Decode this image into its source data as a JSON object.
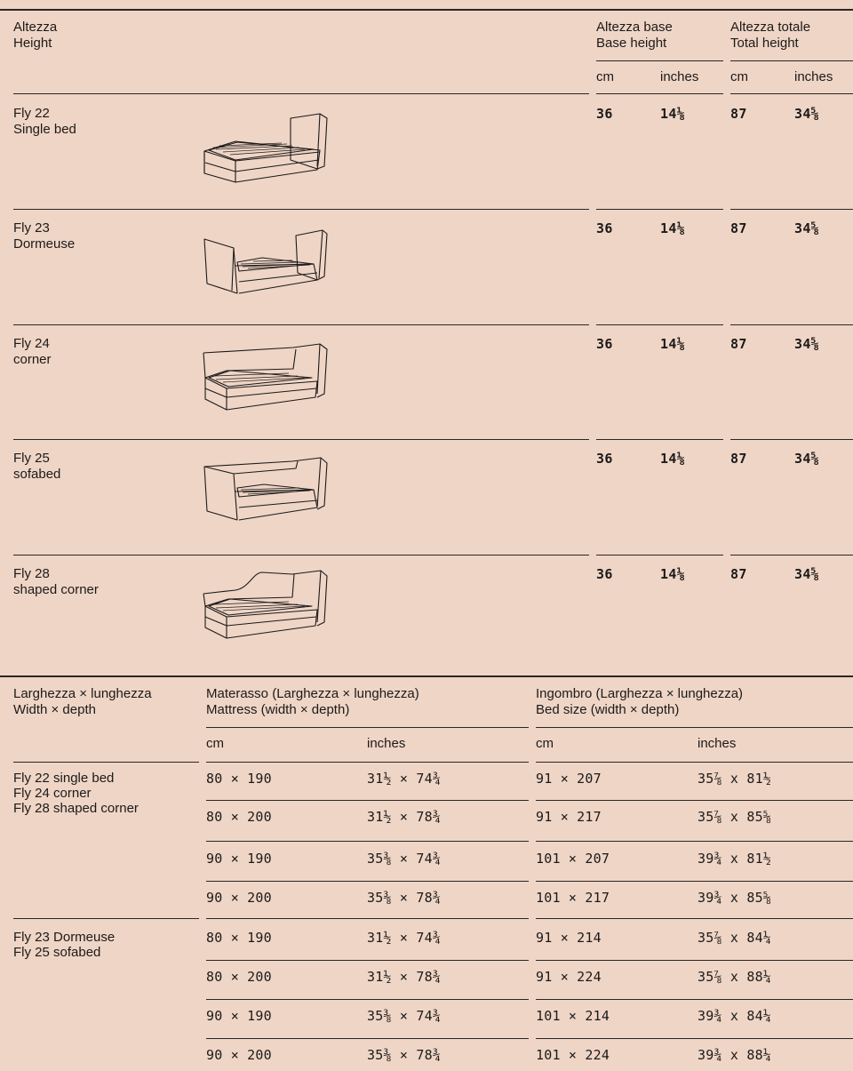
{
  "height_table": {
    "header": {
      "label_it": "Altezza",
      "label_en": "Height",
      "base_it": "Altezza base",
      "base_en": "Base height",
      "total_it": "Altezza totale",
      "total_en": "Total height",
      "unit_cm": "cm",
      "unit_in": "inches"
    },
    "rows": [
      {
        "model": "Fly 22",
        "type": "Single bed",
        "base_cm": "36",
        "base_in": "14⅛",
        "total_cm": "87",
        "total_in": "34⅝"
      },
      {
        "model": "Fly 23",
        "type": "Dormeuse",
        "base_cm": "36",
        "base_in": "14⅛",
        "total_cm": "87",
        "total_in": "34⅝"
      },
      {
        "model": "Fly 24",
        "type": "corner",
        "base_cm": "36",
        "base_in": "14⅛",
        "total_cm": "87",
        "total_in": "34⅝"
      },
      {
        "model": "Fly 25",
        "type": "sofabed",
        "base_cm": "36",
        "base_in": "14⅛",
        "total_cm": "87",
        "total_in": "34⅝"
      },
      {
        "model": "Fly 28",
        "type": "shaped corner",
        "base_cm": "36",
        "base_in": "14⅛",
        "total_cm": "87",
        "total_in": "34⅝"
      }
    ]
  },
  "size_table": {
    "header": {
      "label_it": "Larghezza × lunghezza",
      "label_en": "Width × depth",
      "mattress_it": "Materasso (Larghezza × lunghezza)",
      "mattress_en": "Mattress (width × depth)",
      "bed_it": "Ingombro (Larghezza × lunghezza)",
      "bed_en": "Bed size (width × depth)",
      "unit_cm": "cm",
      "unit_in": "inches"
    },
    "groups": [
      {
        "models": [
          "Fly 22 single bed",
          "Fly 24 corner",
          "Fly 28 shaped corner"
        ],
        "rows": [
          {
            "m_cm": "80 × 190",
            "m_in": "31½ × 74¾",
            "b_cm": "91 × 207",
            "b_in": "35⅞ x 81½"
          },
          {
            "m_cm": "80 × 200",
            "m_in": "31½ × 78¾",
            "b_cm": "91 × 217",
            "b_in": "35⅞ x 85⅝"
          },
          {
            "m_cm": "90 × 190",
            "m_in": "35⅜ × 74¾",
            "b_cm": "101 × 207",
            "b_in": "39¾ x 81½"
          },
          {
            "m_cm": "90 × 200",
            "m_in": "35⅜ × 78¾",
            "b_cm": "101 × 217",
            "b_in": "39¾ x 85⅝"
          }
        ]
      },
      {
        "models": [
          "Fly 23 Dormeuse",
          "Fly 25 sofabed"
        ],
        "rows": [
          {
            "m_cm": "80 × 190",
            "m_in": "31½ × 74¾",
            "b_cm": "91 × 214",
            "b_in": "35⅞ x 84¼"
          },
          {
            "m_cm": "80 × 200",
            "m_in": "31½ × 78¾",
            "b_cm": "91 × 224",
            "b_in": "35⅞ x 88¼"
          },
          {
            "m_cm": "90 × 190",
            "m_in": "35⅜ × 74¾",
            "b_cm": "101 × 214",
            "b_in": "39¾ x 84¼"
          },
          {
            "m_cm": "90 × 200",
            "m_in": "35⅜ × 78¾",
            "b_cm": "101 × 224",
            "b_in": "39¾ x 88¼"
          }
        ]
      }
    ]
  }
}
